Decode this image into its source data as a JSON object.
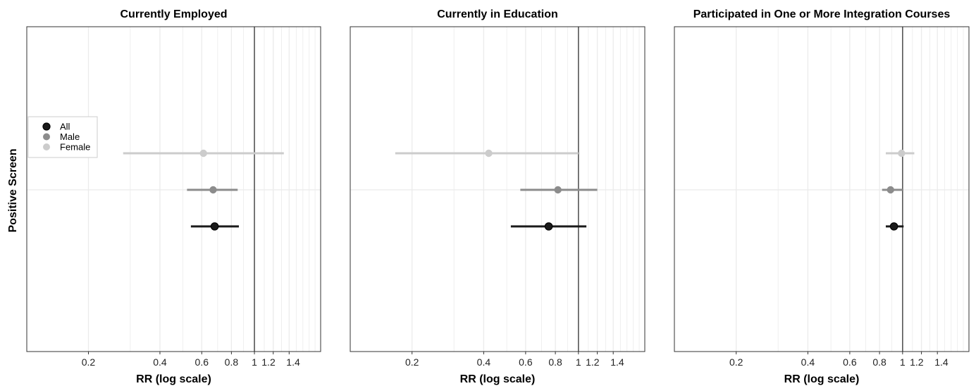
{
  "y_axis_title": "Positive Screen",
  "colors": {
    "All": "#1a1a1a",
    "Male": "#8c8c8c",
    "Female": "#cccccc",
    "ref_line": "#555555",
    "grid": "#ebebeb"
  },
  "legend": {
    "position": "left",
    "entries": [
      "All",
      "Male",
      "Female"
    ]
  },
  "chart_data": [
    {
      "type": "scatter",
      "title": "Currently Employed",
      "xlabel": "RR (log scale)",
      "ylabel": "Positive Screen",
      "x_scale": "log",
      "xlim": [
        0.11,
        1.9
      ],
      "x_ticks": [
        0.2,
        0.4,
        0.6,
        0.8,
        1,
        1.2,
        1.4
      ],
      "x_tick_labels": [
        "0.2",
        "0.4",
        "0.6",
        "0.8",
        "1",
        "1.2",
        "1.4"
      ],
      "reference_line": 1,
      "grid": true,
      "series": [
        {
          "name": "Female",
          "estimate": 0.61,
          "lower": 0.28,
          "upper": 1.33
        },
        {
          "name": "Male",
          "estimate": 0.67,
          "lower": 0.52,
          "upper": 0.85
        },
        {
          "name": "All",
          "estimate": 0.68,
          "lower": 0.54,
          "upper": 0.86
        }
      ]
    },
    {
      "type": "scatter",
      "title": "Currently in Education",
      "xlabel": "RR (log scale)",
      "ylabel": "",
      "x_scale": "log",
      "xlim": [
        0.11,
        1.9
      ],
      "x_ticks": [
        0.2,
        0.4,
        0.6,
        0.8,
        1,
        1.2,
        1.4
      ],
      "x_tick_labels": [
        "0.2",
        "0.4",
        "0.6",
        "0.8",
        "1",
        "1.2",
        "1.4"
      ],
      "reference_line": 1,
      "grid": true,
      "series": [
        {
          "name": "Female",
          "estimate": 0.42,
          "lower": 0.17,
          "upper": 1.0
        },
        {
          "name": "Male",
          "estimate": 0.82,
          "lower": 0.57,
          "upper": 1.2
        },
        {
          "name": "All",
          "estimate": 0.75,
          "lower": 0.52,
          "upper": 1.08
        }
      ]
    },
    {
      "type": "scatter",
      "title": "Participated in One or More Integration Courses",
      "xlabel": "RR (log scale)",
      "ylabel": "",
      "x_scale": "log",
      "xlim": [
        0.11,
        1.9
      ],
      "x_ticks": [
        0.2,
        0.4,
        0.6,
        0.8,
        1,
        1.2,
        1.4
      ],
      "x_tick_labels": [
        "0.2",
        "0.4",
        "0.6",
        "0.8",
        "1",
        "1.2",
        "1.4"
      ],
      "reference_line": 1,
      "grid": true,
      "series": [
        {
          "name": "Female",
          "estimate": 0.99,
          "lower": 0.85,
          "upper": 1.12
        },
        {
          "name": "Male",
          "estimate": 0.89,
          "lower": 0.82,
          "upper": 1.0
        },
        {
          "name": "All",
          "estimate": 0.92,
          "lower": 0.85,
          "upper": 1.01
        }
      ]
    }
  ]
}
